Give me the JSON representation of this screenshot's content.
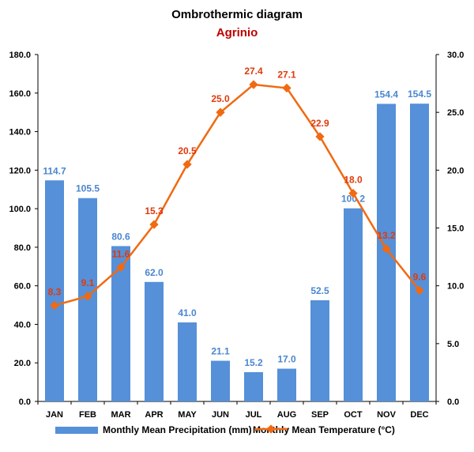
{
  "title": "Ombrothermic diagram",
  "subtitle": "Agrinio",
  "colors": {
    "bar": "#5590d9",
    "bar_label": "#4a86cf",
    "line": "#f06a12",
    "line_label": "#e03a0c",
    "subtitle": "#c00000",
    "axis": "#000000"
  },
  "legend": {
    "precip": "Monthly Mean Precipitation (mm)",
    "temp": "Monthly Mean Temperature (°C)"
  },
  "chart_data": {
    "type": "bar",
    "categories": [
      "JAN",
      "FEB",
      "MAR",
      "APR",
      "MAY",
      "JUN",
      "JUL",
      "AUG",
      "SEP",
      "OCT",
      "NOV",
      "DEC"
    ],
    "series": [
      {
        "name": "Monthly Mean Precipitation (mm)",
        "type": "bar",
        "axis": "left",
        "values": [
          114.7,
          105.5,
          80.6,
          62.0,
          41.0,
          21.1,
          15.2,
          17.0,
          52.5,
          100.2,
          154.4,
          154.5
        ],
        "labels": [
          "114.7",
          "105.5",
          "80.6",
          "62.0",
          "41.0",
          "21.1",
          "15.2",
          "17.0",
          "52.5",
          "100.2",
          "154.4",
          "154.5"
        ]
      },
      {
        "name": "Monthly Mean Temperature (°C)",
        "type": "line",
        "axis": "right",
        "values": [
          8.3,
          9.1,
          11.6,
          15.3,
          20.5,
          25.0,
          27.4,
          27.1,
          22.9,
          18.0,
          13.2,
          9.6
        ],
        "labels": [
          "8.3",
          "9.1",
          "11.6",
          "15.3",
          "20.5",
          "25.0",
          "27.4",
          "27.1",
          "22.9",
          "18.0",
          "13.2",
          "9.6"
        ]
      }
    ],
    "y_left": {
      "min": 0,
      "max": 180,
      "ticks": [
        "0.0",
        "20.0",
        "40.0",
        "60.0",
        "80.0",
        "100.0",
        "120.0",
        "140.0",
        "160.0",
        "180.0"
      ]
    },
    "y_right": {
      "min": 0,
      "max": 30,
      "ticks": [
        "0.0",
        "5.0",
        "10.0",
        "15.0",
        "20.0",
        "25.0",
        "30.0"
      ]
    },
    "grid": false,
    "legend_position": "bottom"
  }
}
